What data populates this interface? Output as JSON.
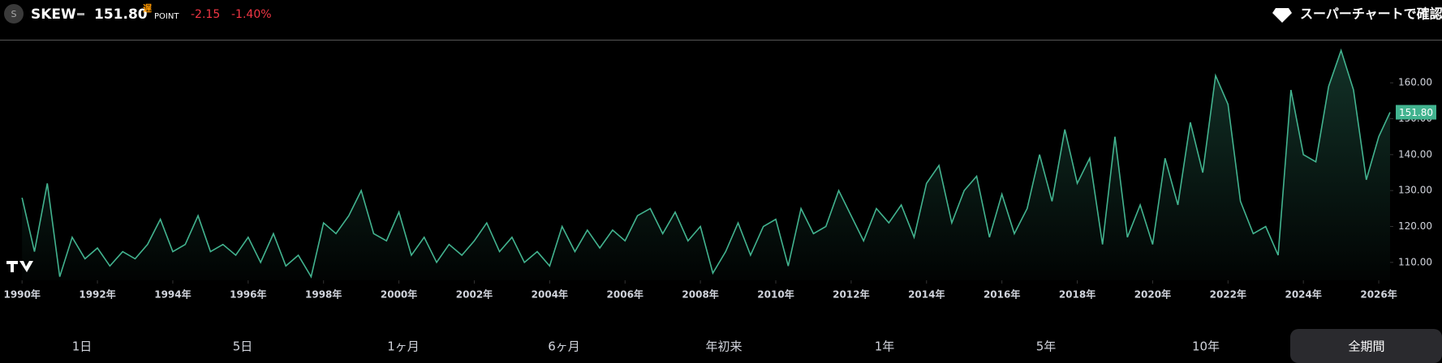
{
  "header": {
    "symbol_initial": "S",
    "symbol": "SKEW",
    "price": "151.80",
    "delayed": "遅",
    "unit": "POINT",
    "change": "-2.15",
    "change_pct": "-1.40%",
    "cta": "スーパーチャートで確認"
  },
  "chart_data": {
    "type": "line",
    "color": "#42b38f",
    "x": [
      1990,
      1990.33,
      1990.67,
      1991,
      1991.33,
      1991.67,
      1992,
      1992.33,
      1992.67,
      1993,
      1993.33,
      1993.67,
      1994,
      1994.33,
      1994.67,
      1995,
      1995.33,
      1995.67,
      1996,
      1996.33,
      1996.67,
      1997,
      1997.33,
      1997.67,
      1998,
      1998.33,
      1998.67,
      1999,
      1999.33,
      1999.67,
      2000,
      2000.33,
      2000.67,
      2001,
      2001.33,
      2001.67,
      2002,
      2002.33,
      2002.67,
      2003,
      2003.33,
      2003.67,
      2004,
      2004.33,
      2004.67,
      2005,
      2005.33,
      2005.67,
      2006,
      2006.33,
      2006.67,
      2007,
      2007.33,
      2007.67,
      2008,
      2008.33,
      2008.67,
      2009,
      2009.33,
      2009.67,
      2010,
      2010.33,
      2010.67,
      2011,
      2011.33,
      2011.67,
      2012,
      2012.33,
      2012.67,
      2013,
      2013.33,
      2013.67,
      2014,
      2014.33,
      2014.67,
      2015,
      2015.33,
      2015.67,
      2016,
      2016.33,
      2016.67,
      2017,
      2017.33,
      2017.67,
      2018,
      2018.33,
      2018.67,
      2019,
      2019.33,
      2019.67,
      2020,
      2020.33,
      2020.67,
      2021,
      2021.33,
      2021.67,
      2022,
      2022.33,
      2022.67,
      2023,
      2023.33,
      2023.67,
      2024,
      2024.33,
      2024.67,
      2025,
      2025.33,
      2025.67,
      2026,
      2026.3
    ],
    "values": [
      128,
      113,
      132,
      106,
      117,
      111,
      114,
      109,
      113,
      111,
      115,
      122,
      113,
      115,
      123,
      113,
      115,
      112,
      117,
      110,
      118,
      109,
      112,
      106,
      121,
      118,
      123,
      130,
      118,
      116,
      124,
      112,
      117,
      110,
      115,
      112,
      116,
      121,
      113,
      117,
      110,
      113,
      109,
      120,
      113,
      119,
      114,
      119,
      116,
      123,
      125,
      118,
      124,
      116,
      120,
      107,
      113,
      121,
      112,
      120,
      122,
      109,
      125,
      118,
      120,
      130,
      123,
      116,
      125,
      121,
      126,
      117,
      132,
      137,
      121,
      130,
      134,
      117,
      129,
      118,
      125,
      140,
      127,
      147,
      132,
      139,
      115,
      145,
      117,
      126,
      115,
      139,
      126,
      149,
      135,
      162,
      154,
      127,
      118,
      120,
      112,
      158,
      140,
      138,
      159,
      169,
      158,
      133,
      145,
      151.8
    ],
    "last_value_label": "151.80",
    "xlim": [
      1989.6,
      2026.3
    ],
    "ylim": [
      105,
      172
    ],
    "xticks": [
      {
        "value": 1990,
        "label": "1990年"
      },
      {
        "value": 1992,
        "label": "1992年"
      },
      {
        "value": 1994,
        "label": "1994年"
      },
      {
        "value": 1996,
        "label": "1996年"
      },
      {
        "value": 1998,
        "label": "1998年"
      },
      {
        "value": 2000,
        "label": "2000年"
      },
      {
        "value": 2002,
        "label": "2002年"
      },
      {
        "value": 2004,
        "label": "2004年"
      },
      {
        "value": 2006,
        "label": "2006年"
      },
      {
        "value": 2008,
        "label": "2008年"
      },
      {
        "value": 2010,
        "label": "2010年"
      },
      {
        "value": 2012,
        "label": "2012年"
      },
      {
        "value": 2014,
        "label": "2014年"
      },
      {
        "value": 2016,
        "label": "2016年"
      },
      {
        "value": 2018,
        "label": "2018年"
      },
      {
        "value": 2020,
        "label": "2020年"
      },
      {
        "value": 2022,
        "label": "2022年"
      },
      {
        "value": 2024,
        "label": "2024年"
      },
      {
        "value": 2026,
        "label": "2026年"
      }
    ],
    "yticks": [
      {
        "value": 110,
        "label": "110.00"
      },
      {
        "value": 120,
        "label": "120.00"
      },
      {
        "value": 130,
        "label": "130.00"
      },
      {
        "value": 140,
        "label": "140.00"
      },
      {
        "value": 150,
        "label": "150.00"
      },
      {
        "value": 160,
        "label": "160.00"
      }
    ]
  },
  "range_buttons": [
    "1日",
    "5日",
    "1ヶ月",
    "6ヶ月",
    "年初来",
    "1年",
    "5年",
    "10年",
    "全期間"
  ],
  "selected_range": 8
}
